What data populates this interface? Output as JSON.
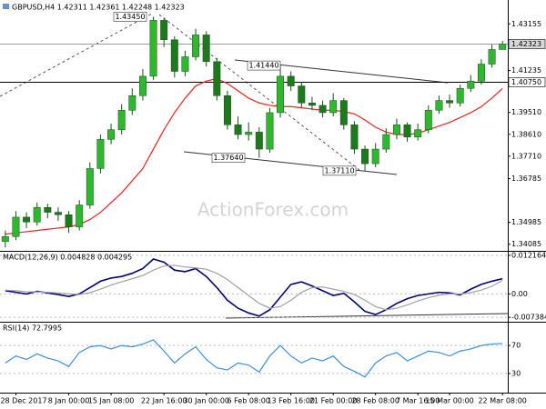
{
  "chart_data": [
    {
      "type": "candlestick",
      "title": "GBPUSD,H4 1.42311 1.42361 1.42248 1.42323",
      "watermark": "ActionForex.com",
      "categories": [
        null,
        "28 Dec 2017",
        null,
        null,
        null,
        null,
        "8 Jan 00:00",
        null,
        null,
        null,
        "15 Jan 08:00",
        null,
        null,
        null,
        null,
        "22 Jan 16:00",
        null,
        null,
        null,
        "30 Jan 00:00",
        null,
        null,
        null,
        "6 Feb 08:00",
        null,
        null,
        null,
        "13 Feb 16:00",
        null,
        null,
        null,
        "21 Feb 00:00",
        null,
        null,
        null,
        "28 Feb 08:00",
        null,
        null,
        null,
        "7 Mar 16:00",
        null,
        null,
        "15 Mar 00:00",
        null,
        null,
        null,
        null,
        "22 Mar 08:00"
      ],
      "open": [
        1.342,
        1.344,
        1.352,
        1.35,
        1.356,
        1.354,
        1.353,
        1.348,
        1.357,
        1.372,
        1.384,
        1.388,
        1.396,
        1.402,
        1.41,
        1.433,
        1.425,
        1.412,
        1.418,
        1.427,
        1.416,
        1.402,
        1.39,
        1.386,
        1.387,
        1.38,
        1.395,
        1.41,
        1.406,
        1.399,
        1.398,
        1.395,
        1.4,
        1.39,
        1.38,
        1.374,
        1.38,
        1.386,
        1.39,
        1.385,
        1.388,
        1.396,
        1.4,
        1.399,
        1.405,
        1.408,
        1.415,
        1.421
      ],
      "high": [
        1.3465,
        1.3545,
        1.354,
        1.358,
        1.3575,
        1.356,
        1.3545,
        1.359,
        1.3745,
        1.386,
        1.3905,
        1.3985,
        1.405,
        1.413,
        1.4345,
        1.434,
        1.4265,
        1.4205,
        1.4295,
        1.4285,
        1.4175,
        1.404,
        1.3935,
        1.391,
        1.389,
        1.397,
        1.4144,
        1.412,
        1.4075,
        1.4015,
        1.4,
        1.403,
        1.401,
        1.3915,
        1.3815,
        1.3825,
        1.3885,
        1.3925,
        1.391,
        1.3905,
        1.398,
        1.402,
        1.4025,
        1.4065,
        1.4105,
        1.417,
        1.423,
        1.4245
      ],
      "low": [
        1.3395,
        1.3425,
        1.3475,
        1.3485,
        1.3515,
        1.3505,
        1.3455,
        1.3465,
        1.3555,
        1.37,
        1.382,
        1.386,
        1.394,
        1.4,
        1.4085,
        1.422,
        1.4095,
        1.41,
        1.4165,
        1.414,
        1.4,
        1.388,
        1.384,
        1.3835,
        1.3764,
        1.3785,
        1.393,
        1.404,
        1.397,
        1.396,
        1.393,
        1.3935,
        1.388,
        1.378,
        1.3711,
        1.3725,
        1.3785,
        1.384,
        1.383,
        1.3835,
        1.3865,
        1.3945,
        1.397,
        1.3975,
        1.4035,
        1.4065,
        1.4135,
        1.422
      ],
      "close": [
        1.344,
        1.352,
        1.35,
        1.356,
        1.354,
        1.353,
        1.348,
        1.357,
        1.372,
        1.384,
        1.388,
        1.396,
        1.402,
        1.41,
        1.433,
        1.425,
        1.412,
        1.418,
        1.427,
        1.416,
        1.402,
        1.39,
        1.386,
        1.387,
        1.38,
        1.395,
        1.41,
        1.406,
        1.399,
        1.398,
        1.395,
        1.4,
        1.39,
        1.38,
        1.374,
        1.38,
        1.386,
        1.39,
        1.385,
        1.388,
        1.396,
        1.4,
        1.399,
        1.405,
        1.408,
        1.415,
        1.421,
        1.4232
      ],
      "up_color": "#2eb82e",
      "down_color": "#1c7a1c",
      "series": [
        {
          "color": "#e8241c",
          "values": [
            1.345,
            1.3455,
            1.346,
            1.3465,
            1.347,
            1.3475,
            1.348,
            1.349,
            1.351,
            1.354,
            1.358,
            1.362,
            1.367,
            1.372,
            1.38,
            1.388,
            1.395,
            1.401,
            1.406,
            1.408,
            1.409,
            1.407,
            1.404,
            1.401,
            1.399,
            1.398,
            1.3975,
            1.3975,
            1.397,
            1.3965,
            1.396,
            1.396,
            1.3955,
            1.3945,
            1.392,
            1.389,
            1.387,
            1.386,
            1.386,
            1.3865,
            1.388,
            1.3895,
            1.391,
            1.393,
            1.395,
            1.3975,
            1.401,
            1.405
          ]
        }
      ],
      "ylim": [
        1.3385,
        1.4395
      ],
      "yticks": [
        1.43155,
        1.41235,
        {
          "value": 1.3951,
          "label": "1.39510"
        },
        {
          "value": 1.3861,
          "label": "1.38610"
        },
        {
          "value": 1.3771,
          "label": "1.37710"
        },
        1.36785,
        1.34985,
        1.34085
      ],
      "levels": [
        1.42323,
        {
          "value": 1.4075,
          "label": "1.40750"
        }
      ],
      "annotations": [
        {
          "value": 1.4345,
          "label": "1.43450"
        },
        {
          "value": 1.4144,
          "label": "1.41440"
        },
        {
          "value": 1.3764,
          "label": "1.37640"
        },
        {
          "value": 1.3711,
          "label": "1.37110"
        }
      ]
    },
    {
      "type": "line",
      "title": "MACD(12,26,9) 0.004828 0.004295",
      "series": [
        {
          "color": "#00007a",
          "values": [
            0.001,
            0.0005,
            0.0,
            0.0008,
            0.0003,
            -0.0002,
            -0.0008,
            0.0,
            0.002,
            0.004,
            0.005,
            0.0055,
            0.0065,
            0.008,
            0.011,
            0.01,
            0.0075,
            0.007,
            0.008,
            0.0055,
            0.002,
            -0.002,
            -0.0045,
            -0.006,
            -0.007,
            -0.005,
            -0.001,
            0.003,
            0.0038,
            0.0025,
            0.001,
            -0.0005,
            0.0002,
            -0.0025,
            -0.0055,
            -0.0065,
            -0.005,
            -0.003,
            -0.0015,
            -0.0005,
            0.0,
            0.0005,
            0.0003,
            -0.0003,
            0.0015,
            0.003,
            0.004,
            0.0048
          ]
        },
        {
          "color": "#a0a0a0",
          "values": [
            0.0012,
            0.001,
            0.0007,
            0.0006,
            0.0005,
            0.0003,
            0.0,
            -0.0002,
            0.0004,
            0.0015,
            0.0028,
            0.0038,
            0.0048,
            0.0058,
            0.0075,
            0.0088,
            0.009,
            0.0085,
            0.0082,
            0.0078,
            0.0065,
            0.0045,
            0.002,
            -0.0005,
            -0.003,
            -0.0045,
            -0.004,
            -0.002,
            0.0005,
            0.002,
            0.0022,
            0.0015,
            0.0008,
            -0.0002,
            -0.002,
            -0.004,
            -0.005,
            -0.0045,
            -0.0035,
            -0.0022,
            -0.0012,
            -0.0004,
            0.0,
            0.0,
            0.0004,
            0.0012,
            0.0024,
            0.0043
          ]
        }
      ],
      "ylim": [
        -0.0082,
        0.013
      ],
      "yticks": [
        0.012164,
        {
          "value": 0,
          "label": "0.00"
        },
        -0.007384
      ]
    },
    {
      "type": "line",
      "title": "RSI(14) 72.7995",
      "series": [
        {
          "color": "#3b8fdc",
          "values": [
            45,
            55,
            50,
            58,
            52,
            48,
            40,
            60,
            68,
            70,
            65,
            70,
            68,
            72,
            78,
            62,
            45,
            58,
            68,
            50,
            38,
            35,
            45,
            42,
            32,
            55,
            70,
            55,
            45,
            52,
            48,
            55,
            40,
            33,
            25,
            45,
            55,
            60,
            48,
            55,
            62,
            60,
            55,
            62,
            65,
            70,
            72,
            72.8
          ]
        }
      ],
      "ylim": [
        0,
        100
      ],
      "yticks": [
        70,
        30
      ]
    }
  ]
}
